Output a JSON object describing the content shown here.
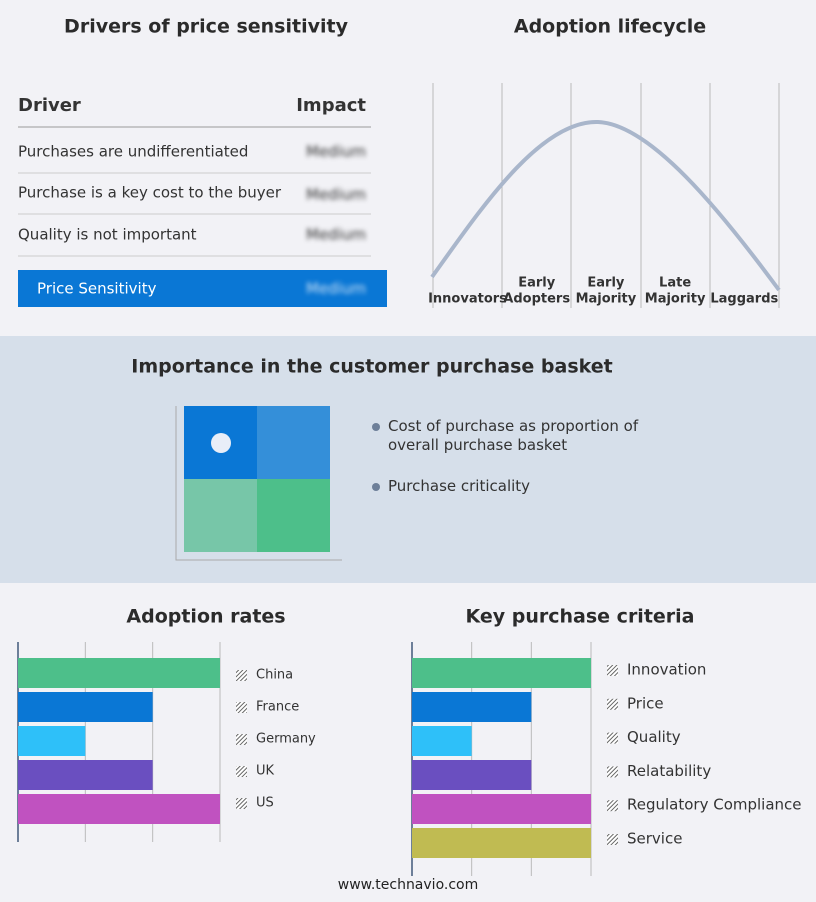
{
  "drivers": {
    "title": "Drivers of price sensitivity",
    "columns": [
      "Driver",
      "Impact"
    ],
    "rows": [
      [
        "Purchases are undifferentiated",
        "Medium"
      ],
      [
        "Purchase is a key cost to the buyer",
        "Medium"
      ],
      [
        "Quality is not important",
        "Medium"
      ]
    ],
    "summary": [
      "Price Sensitivity",
      "Medium"
    ]
  },
  "lifecycle": {
    "title": "Adoption lifecycle",
    "stages": [
      [
        "Innovators"
      ],
      [
        "Early",
        "Adopters"
      ],
      [
        "Early",
        "Majority"
      ],
      [
        "Late",
        "Majority"
      ],
      [
        "Laggards"
      ]
    ]
  },
  "basket": {
    "title": "Importance in the customer purchase basket",
    "legend": [
      "Cost of purchase as proportion of overall purchase basket",
      "Purchase criticality"
    ]
  },
  "chart_data": [
    {
      "type": "bar",
      "orientation": "horizontal",
      "title": "Adoption rates",
      "categories": [
        "China",
        "France",
        "Germany",
        "UK",
        "US"
      ],
      "values": [
        3,
        2,
        1,
        2,
        3
      ],
      "colors": [
        "#4dbf8a",
        "#0a77d5",
        "#2ec0f9",
        "#6a4fc0",
        "#c052c0"
      ],
      "xlim": [
        0,
        3
      ],
      "xticks": [
        0,
        1,
        2,
        3
      ],
      "grid": true
    },
    {
      "type": "bar",
      "orientation": "horizontal",
      "title": "Key purchase criteria",
      "categories": [
        "Innovation",
        "Price",
        "Quality",
        "Relatability",
        "Regulatory Compliance",
        "Service"
      ],
      "values": [
        3,
        2,
        1,
        2,
        3,
        3
      ],
      "colors": [
        "#4dbf8a",
        "#0a77d5",
        "#2ec0f9",
        "#6a4fc0",
        "#c052c0",
        "#c0bb52"
      ],
      "xlim": [
        0,
        3
      ],
      "xticks": [
        0,
        1,
        2,
        3
      ],
      "grid": true
    }
  ],
  "footer": "www.technavio.com"
}
